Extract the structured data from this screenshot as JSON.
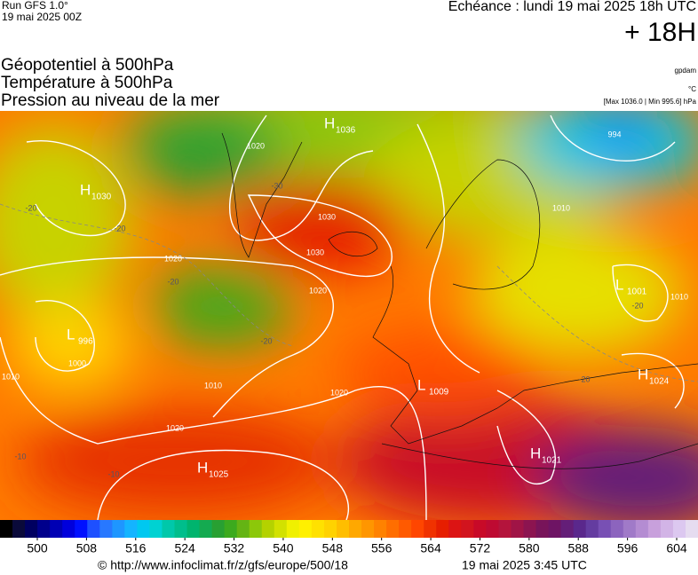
{
  "header": {
    "run": "Run GFS 1.0°",
    "run_date": "19 mai 2025 00Z",
    "forecast": "Echéance : lundi 19 mai 2025 18h UTC",
    "step": "+ 18H",
    "titles": [
      "Géopotentiel à 500hPa",
      "Température à 500hPa",
      "Pression au niveau de la mer"
    ],
    "units": [
      "gpdam",
      "°C",
      "[Max 1036.0 | Min 995.6] hPa"
    ]
  },
  "map": {
    "centers": [
      {
        "letter": "H",
        "value": "1036"
      },
      {
        "letter": "H",
        "value": "1030"
      },
      {
        "letter": "L",
        "value": "996"
      },
      {
        "letter": "L",
        "value": "1001"
      },
      {
        "letter": "L",
        "value": "1009"
      },
      {
        "letter": "H",
        "value": "1024"
      },
      {
        "letter": "H",
        "value": "1021"
      },
      {
        "letter": "H",
        "value": "1025"
      }
    ],
    "isobar_labels": [
      "1020",
      "1030",
      "1030",
      "1020",
      "1020",
      "1000",
      "1010",
      "1010",
      "1020",
      "1020",
      "1010",
      "1010",
      "994"
    ],
    "temperature_labels": [
      "-20",
      "-20",
      "-20",
      "-20",
      "-20",
      "-20",
      "-10",
      "-10",
      "-30"
    ]
  },
  "colorbar": {
    "colors": [
      "#000000",
      "#0a0a3a",
      "#000060",
      "#00008c",
      "#0000b4",
      "#0000dc",
      "#0010ff",
      "#1e50ff",
      "#2878ff",
      "#1e96ff",
      "#14b4ff",
      "#00c8f0",
      "#00d2d2",
      "#00c8aa",
      "#00be8c",
      "#00b46e",
      "#14aa50",
      "#28a032",
      "#3caa1e",
      "#64b414",
      "#8cc80a",
      "#b4d200",
      "#d2e100",
      "#f0f000",
      "#fff000",
      "#ffe100",
      "#ffd200",
      "#ffbe00",
      "#ffa800",
      "#ff9600",
      "#ff8200",
      "#ff6e00",
      "#ff5a00",
      "#ff4600",
      "#f03200",
      "#e61e00",
      "#dc1414",
      "#d2141e",
      "#c80a28",
      "#be0a32",
      "#b4143c",
      "#a01446",
      "#8c1450",
      "#78145a",
      "#6e1464",
      "#641e78",
      "#5a288c",
      "#643ca0",
      "#7850b4",
      "#8c64be",
      "#a07ac8",
      "#b48cd2",
      "#c8a0dc",
      "#d2b4e6",
      "#dcc8f0",
      "#e6dcf0"
    ],
    "ticks": [
      500,
      508,
      516,
      524,
      532,
      540,
      548,
      556,
      564,
      572,
      580,
      588,
      596,
      604
    ]
  },
  "footer": {
    "source": "© http://www.infoclimat.fr/z/gfs/europe/500/18",
    "generated": "19 mai 2025  3:45 UTC"
  }
}
